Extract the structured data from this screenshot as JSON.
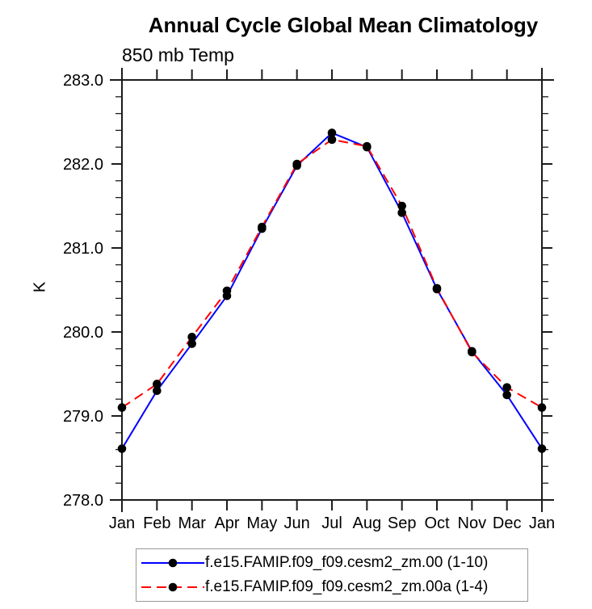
{
  "chart_data": {
    "type": "line",
    "title": "Annual Cycle Global Mean Climatology",
    "subtitle": "850 mb Temp",
    "xlabel": "",
    "ylabel": "K",
    "categories": [
      "Jan",
      "Feb",
      "Mar",
      "Apr",
      "May",
      "Jun",
      "Jul",
      "Aug",
      "Sep",
      "Oct",
      "Nov",
      "Dec",
      "Jan"
    ],
    "ylim": [
      278.0,
      283.0
    ],
    "ytick_step": 1.0,
    "ytick_minor_step": 0.2,
    "ytick_labels": [
      "278.0",
      "279.0",
      "280.0",
      "281.0",
      "282.0",
      "283.0"
    ],
    "grid": false,
    "legend_position": "bottom",
    "axis_color": "#1c1c1c",
    "marker_color": "#000000",
    "series": [
      {
        "name": "f.e15.FAMIP.f09_f09.cesm2_zm.00 (1-10)",
        "color": "#0000ff",
        "line_style": "solid",
        "marker": "filled-circle",
        "values": [
          278.61,
          279.3,
          279.86,
          280.43,
          281.23,
          281.98,
          282.37,
          282.2,
          281.42,
          280.51,
          279.77,
          279.25,
          278.61
        ]
      },
      {
        "name": "f.e15.FAMIP.f09_f09.cesm2_zm.00a (1-4)",
        "color": "#ff0000",
        "line_style": "dashed",
        "marker": "filled-circle",
        "values": [
          279.1,
          279.38,
          279.94,
          280.49,
          281.25,
          282.0,
          282.29,
          282.21,
          281.5,
          280.52,
          279.76,
          279.34,
          279.1
        ]
      }
    ]
  }
}
